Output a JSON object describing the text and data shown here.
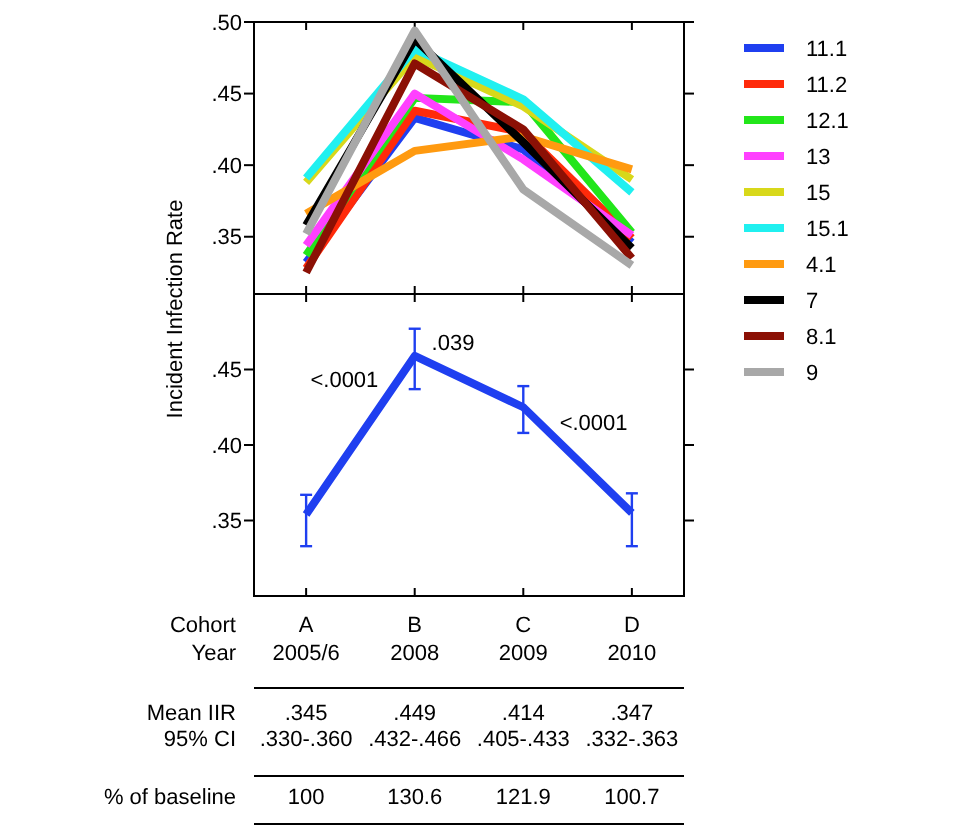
{
  "chart_data": [
    {
      "type": "line",
      "categories": [
        null,
        null,
        null,
        null
      ],
      "ylabel": "Incident Infection Rate",
      "ylim": [
        0.31,
        0.5
      ],
      "yticks": [
        {
          "value": 0.35,
          "label": ".35"
        },
        {
          "value": 0.4,
          "label": ".40"
        },
        {
          "value": 0.45,
          "label": ".45"
        },
        {
          "value": 0.5,
          "label": ".50"
        }
      ],
      "tick_labels": "y",
      "legend": "right",
      "series": [
        {
          "name": "11.1",
          "color": "#1f3ff0",
          "values": [
            0.332,
            0.433,
            0.411,
            0.346
          ]
        },
        {
          "name": "11.2",
          "color": "#ff2a0a",
          "values": [
            0.328,
            0.438,
            0.423,
            0.349
          ]
        },
        {
          "name": "12.1",
          "color": "#22e61a",
          "values": [
            0.337,
            0.447,
            0.444,
            0.353
          ]
        },
        {
          "name": "13",
          "color": "#ff40ff",
          "values": [
            0.344,
            0.45,
            0.404,
            0.351
          ]
        },
        {
          "name": "15",
          "color": "#d8d81a",
          "values": [
            0.388,
            0.476,
            0.441,
            0.39
          ]
        },
        {
          "name": "15.1",
          "color": "#20f0f0",
          "values": [
            0.391,
            0.481,
            0.446,
            0.381
          ]
        },
        {
          "name": "4.1",
          "color": "#ff9a10",
          "values": [
            0.366,
            0.41,
            0.42,
            0.397
          ]
        },
        {
          "name": "7",
          "color": "#000000",
          "values": [
            0.358,
            0.488,
            0.416,
            0.342
          ]
        },
        {
          "name": "8.1",
          "color": "#8b1005",
          "values": [
            0.325,
            0.471,
            0.425,
            0.335
          ]
        },
        {
          "name": "9",
          "color": "#a8a8a8",
          "values": [
            0.352,
            0.494,
            0.383,
            0.33
          ]
        }
      ]
    },
    {
      "type": "line",
      "categories": [
        "A",
        "B",
        "C",
        "D"
      ],
      "xlabel": "Cohort",
      "ylim": [
        0.3,
        0.5
      ],
      "yticks": [
        {
          "value": 0.35,
          "label": ".35"
        },
        {
          "value": 0.4,
          "label": ".40"
        },
        {
          "value": 0.45,
          "label": ".45"
        }
      ],
      "annotations": [
        "<.0001",
        ".039",
        "<.0001"
      ],
      "series": [
        {
          "color": "#1f3ff0",
          "values": [
            0.354,
            0.459,
            0.425,
            0.355
          ],
          "errors": [
            [
              0.333,
              0.367
            ],
            [
              0.437,
              0.477
            ],
            [
              0.408,
              0.439
            ],
            [
              0.333,
              0.368
            ]
          ]
        }
      ]
    },
    {
      "type": "other",
      "annotations": [
        "Year",
        "2005/6",
        "2008",
        "2009",
        "2010",
        "Mean IIR",
        ".345",
        ".449",
        ".414",
        ".347",
        "95% CI",
        ".330-.360",
        ".432-.466",
        ".405-.433",
        ".332-.363",
        "% of baseline",
        "100",
        "130.6",
        "121.9",
        "100.7"
      ]
    }
  ]
}
